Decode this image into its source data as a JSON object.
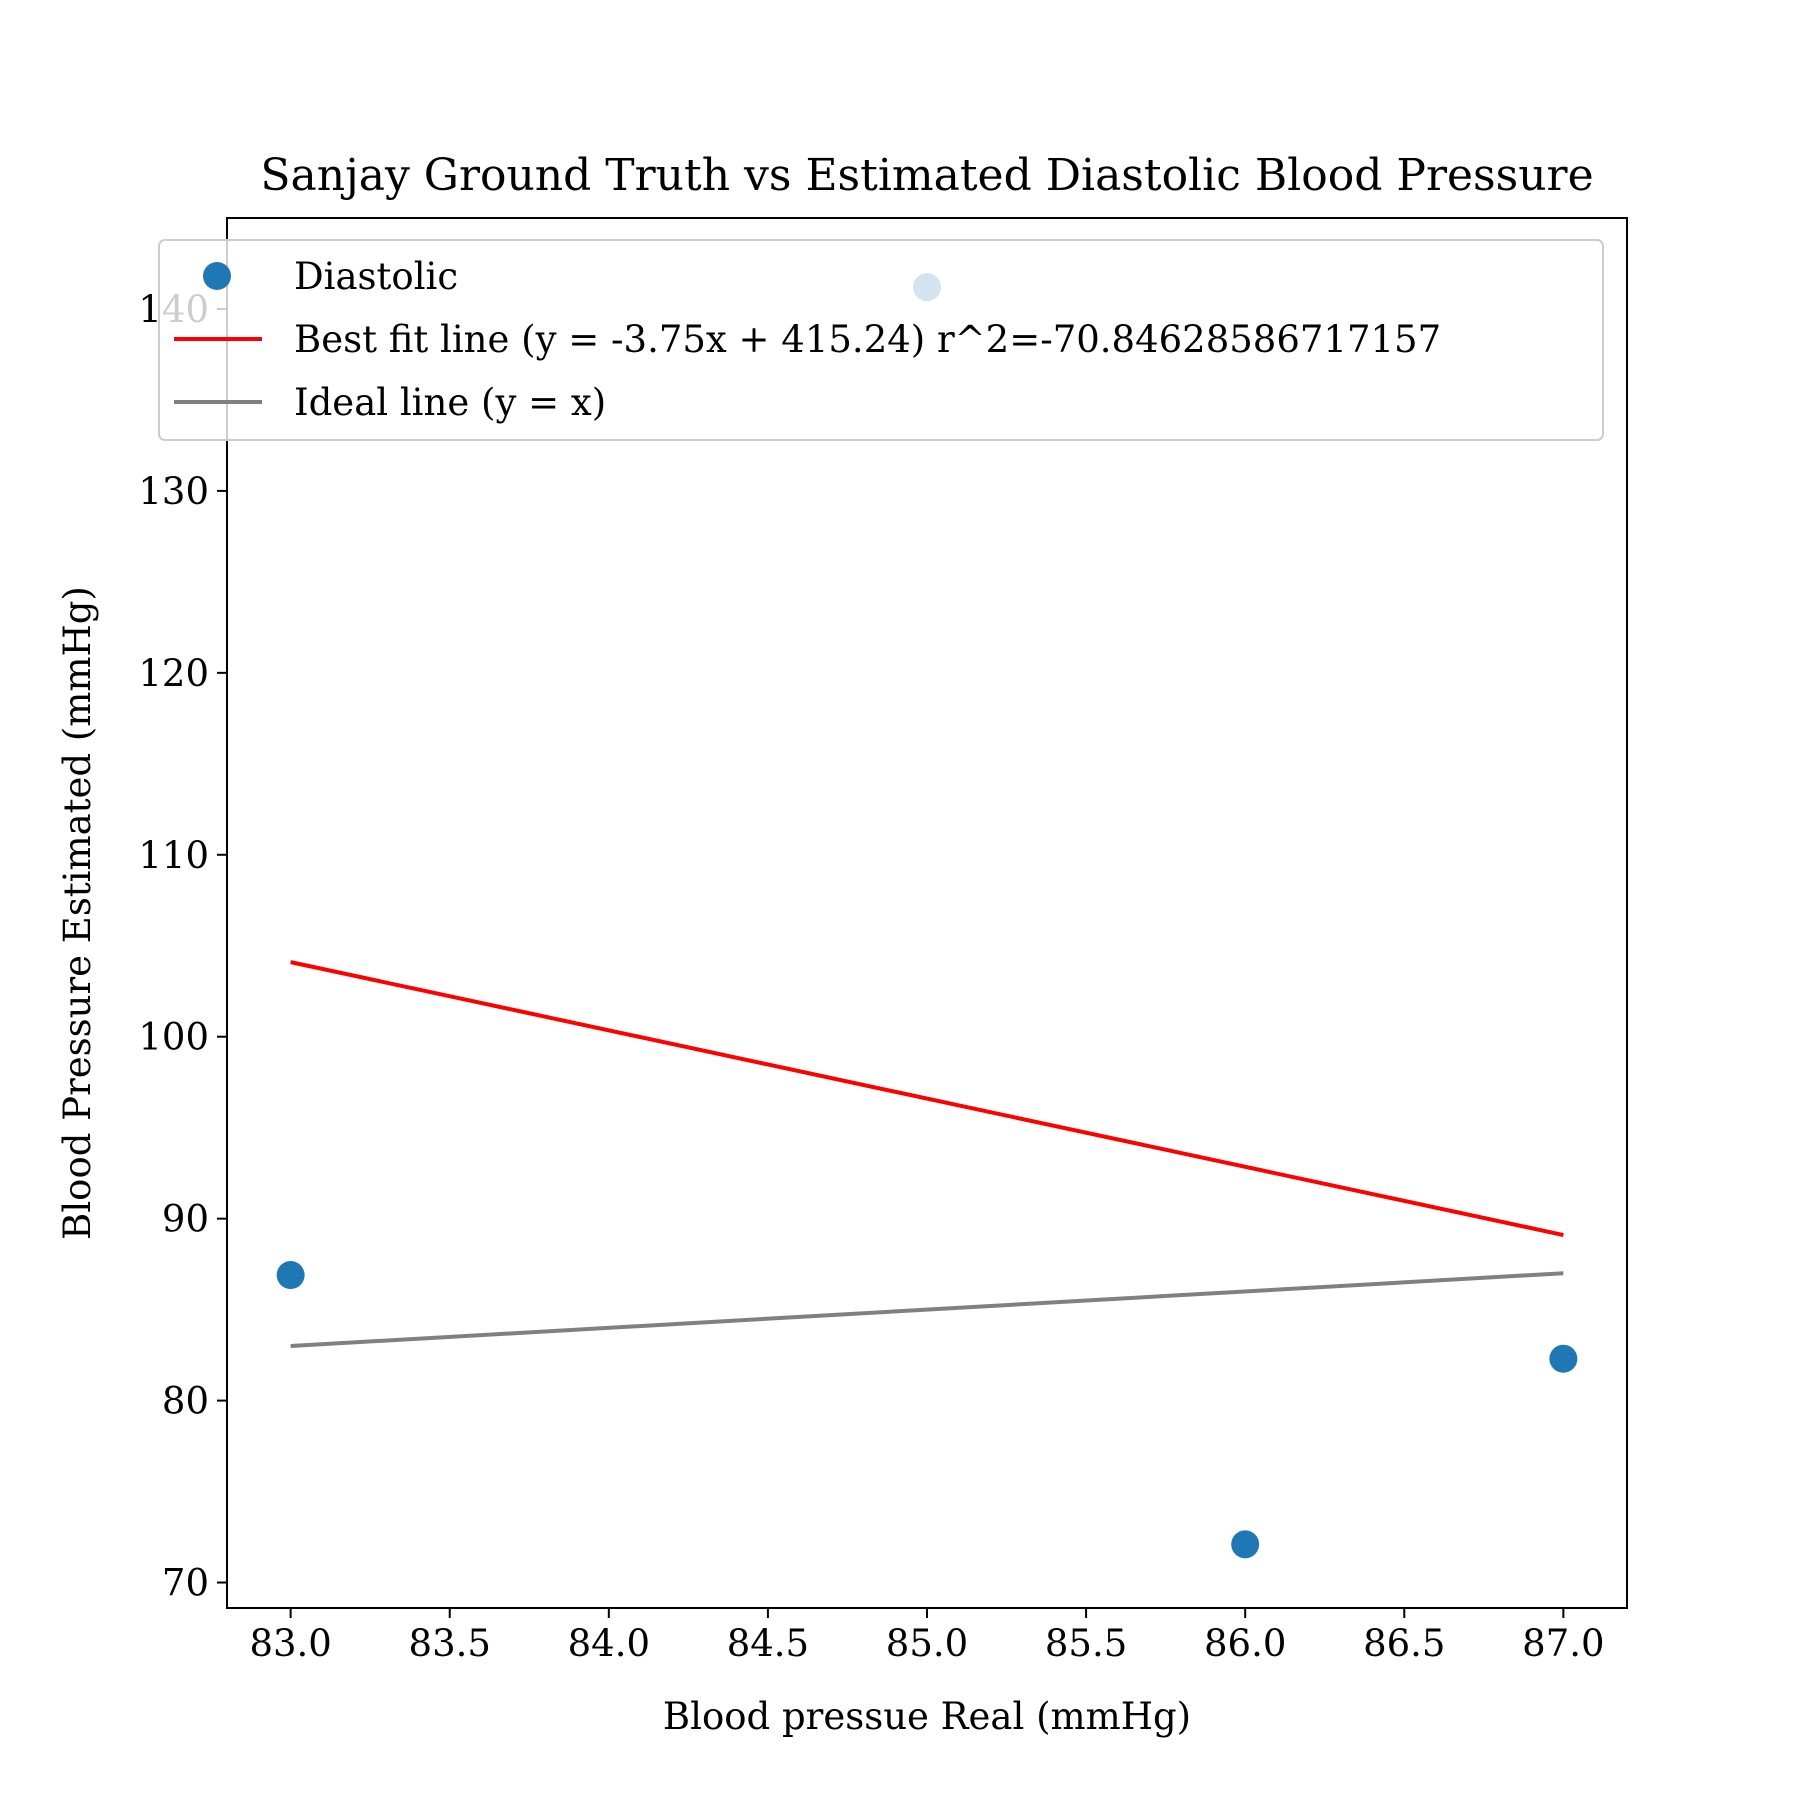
{
  "chart_data": {
    "type": "scatter",
    "title": "Sanjay Ground Truth vs Estimated Diastolic Blood Pressure",
    "xlabel": "Blood pressue Real (mmHg)",
    "ylabel": "Blood Pressure Estimated (mmHg)",
    "xlim": [
      82.8,
      87.2
    ],
    "ylim": [
      68.6,
      145.0
    ],
    "xticks": [
      83.0,
      83.5,
      84.0,
      84.5,
      85.0,
      85.5,
      86.0,
      86.5,
      87.0
    ],
    "xtick_labels": [
      "83.0",
      "83.5",
      "84.0",
      "84.5",
      "85.0",
      "85.5",
      "86.0",
      "86.5",
      "87.0"
    ],
    "yticks": [
      70,
      80,
      90,
      100,
      110,
      120,
      130,
      140
    ],
    "ytick_labels": [
      "70",
      "80",
      "90",
      "100",
      "110",
      "120",
      "130",
      "140"
    ],
    "grid": false,
    "legend_position": "top-left",
    "series": [
      {
        "name": "Diastolic",
        "kind": "scatter",
        "color": "#1f77b4",
        "points": [
          {
            "x": 83.0,
            "y": 86.9
          },
          {
            "x": 85.0,
            "y": 141.2
          },
          {
            "x": 86.0,
            "y": 72.1
          },
          {
            "x": 87.0,
            "y": 82.3
          }
        ]
      },
      {
        "name": "Best fit line (y = -3.75x + 415.24) r^2=-70.84628586717157",
        "kind": "line",
        "color": "#ff0000",
        "points": [
          {
            "x": 83.0,
            "y": 104.1
          },
          {
            "x": 87.0,
            "y": 89.1
          }
        ]
      },
      {
        "name": "Ideal line (y = x)",
        "kind": "line",
        "color": "#808080",
        "points": [
          {
            "x": 83.0,
            "y": 83.0
          },
          {
            "x": 87.0,
            "y": 87.0
          }
        ]
      }
    ]
  }
}
